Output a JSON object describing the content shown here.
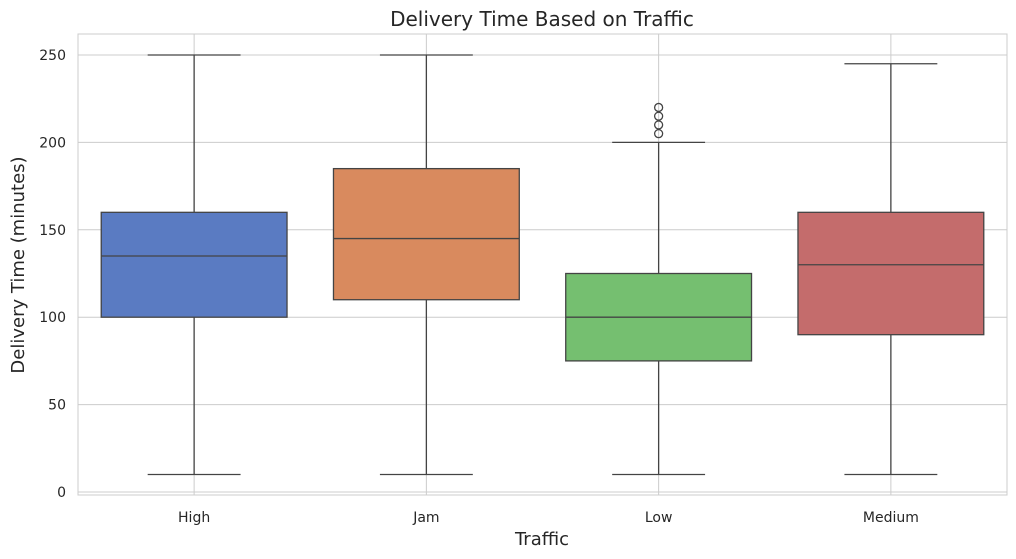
{
  "chart_data": {
    "type": "box",
    "title": "Delivery Time Based on Traffic",
    "xlabel": "Traffic",
    "ylabel": "Delivery Time (minutes)",
    "ylim": [
      0,
      262
    ],
    "yticks": [
      0,
      50,
      100,
      150,
      200,
      250
    ],
    "grid": true,
    "categories": [
      "High",
      "Jam",
      "Low",
      "Medium"
    ],
    "boxes": [
      {
        "category": "High",
        "whisker_low": 10,
        "q1": 100,
        "median": 135,
        "q3": 160,
        "whisker_high": 250,
        "outliers": [],
        "color": "#5a7bc2"
      },
      {
        "category": "Jam",
        "whisker_low": 10,
        "q1": 110,
        "median": 145,
        "q3": 185,
        "whisker_high": 250,
        "outliers": [],
        "color": "#d98a5e"
      },
      {
        "category": "Low",
        "whisker_low": 10,
        "q1": 75,
        "median": 100,
        "q3": 125,
        "whisker_high": 200,
        "outliers": [
          205,
          210,
          215,
          220
        ],
        "color": "#75bf70"
      },
      {
        "category": "Medium",
        "whisker_low": 10,
        "q1": 90,
        "median": 130,
        "q3": 160,
        "whisker_high": 245,
        "outliers": [],
        "color": "#c46c6c"
      }
    ]
  }
}
